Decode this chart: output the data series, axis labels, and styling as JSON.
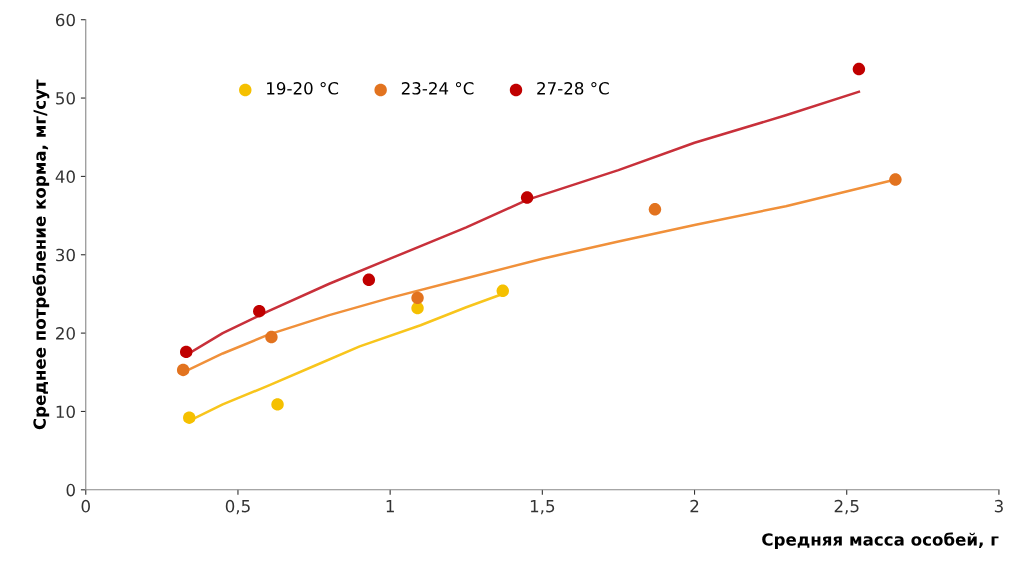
{
  "chart_data": {
    "type": "scatter",
    "xlabel": "Средняя масса особей, г",
    "ylabel": "Среднее потребление корма, мг/сут",
    "xlim": [
      0,
      3
    ],
    "xticks": [
      0,
      {
        "value": 0.5,
        "label": "0,5"
      },
      1,
      {
        "value": 1.5,
        "label": "1,5"
      },
      2,
      {
        "value": 2.5,
        "label": "2,5"
      },
      3
    ],
    "ylim": [
      0,
      60
    ],
    "yticks": [
      0,
      10,
      20,
      30,
      40,
      50,
      60
    ],
    "grid": false,
    "legend": "top left",
    "marker": "circle",
    "series": [
      {
        "name": "19-20 °C",
        "color": "#f5c000",
        "x": [
          0.34,
          0.63,
          1.09,
          1.37
        ],
        "values": [
          9.2,
          10.9,
          23.2,
          25.4
        ]
      },
      {
        "name": "23-24 °C",
        "color": "#e2731f",
        "x": [
          0.32,
          0.61,
          1.09,
          1.87,
          2.66
        ],
        "values": [
          15.3,
          19.5,
          24.5,
          35.8,
          39.6
        ]
      },
      {
        "name": "27-28 °C",
        "color": "#c00000",
        "x": [
          0.33,
          0.57,
          0.93,
          1.45,
          2.54
        ],
        "values": [
          17.6,
          22.8,
          26.8,
          37.3,
          53.7
        ]
      },
      {
        "type": "line",
        "marker": "none",
        "color": "#f8c51c",
        "x": [
          0.34,
          0.45,
          0.6,
          0.75,
          0.9,
          1.1,
          1.25,
          1.37
        ],
        "values": [
          8.8,
          10.9,
          13.3,
          15.8,
          18.3,
          21.0,
          23.3,
          25.0
        ]
      },
      {
        "type": "line",
        "marker": "none",
        "color": "#f0903a",
        "x": [
          0.32,
          0.45,
          0.6,
          0.8,
          1.0,
          1.25,
          1.5,
          1.75,
          2.0,
          2.3,
          2.66
        ],
        "values": [
          15.0,
          17.4,
          19.8,
          22.3,
          24.5,
          27.0,
          29.5,
          31.7,
          33.8,
          36.2,
          39.6
        ]
      },
      {
        "type": "line",
        "marker": "none",
        "color": "#c8303a",
        "x": [
          0.33,
          0.45,
          0.6,
          0.8,
          1.0,
          1.25,
          1.45,
          1.75,
          2.0,
          2.3,
          2.54
        ],
        "values": [
          17.2,
          20.0,
          22.8,
          26.3,
          29.5,
          33.5,
          37.0,
          40.8,
          44.3,
          47.8,
          50.8
        ]
      }
    ]
  }
}
